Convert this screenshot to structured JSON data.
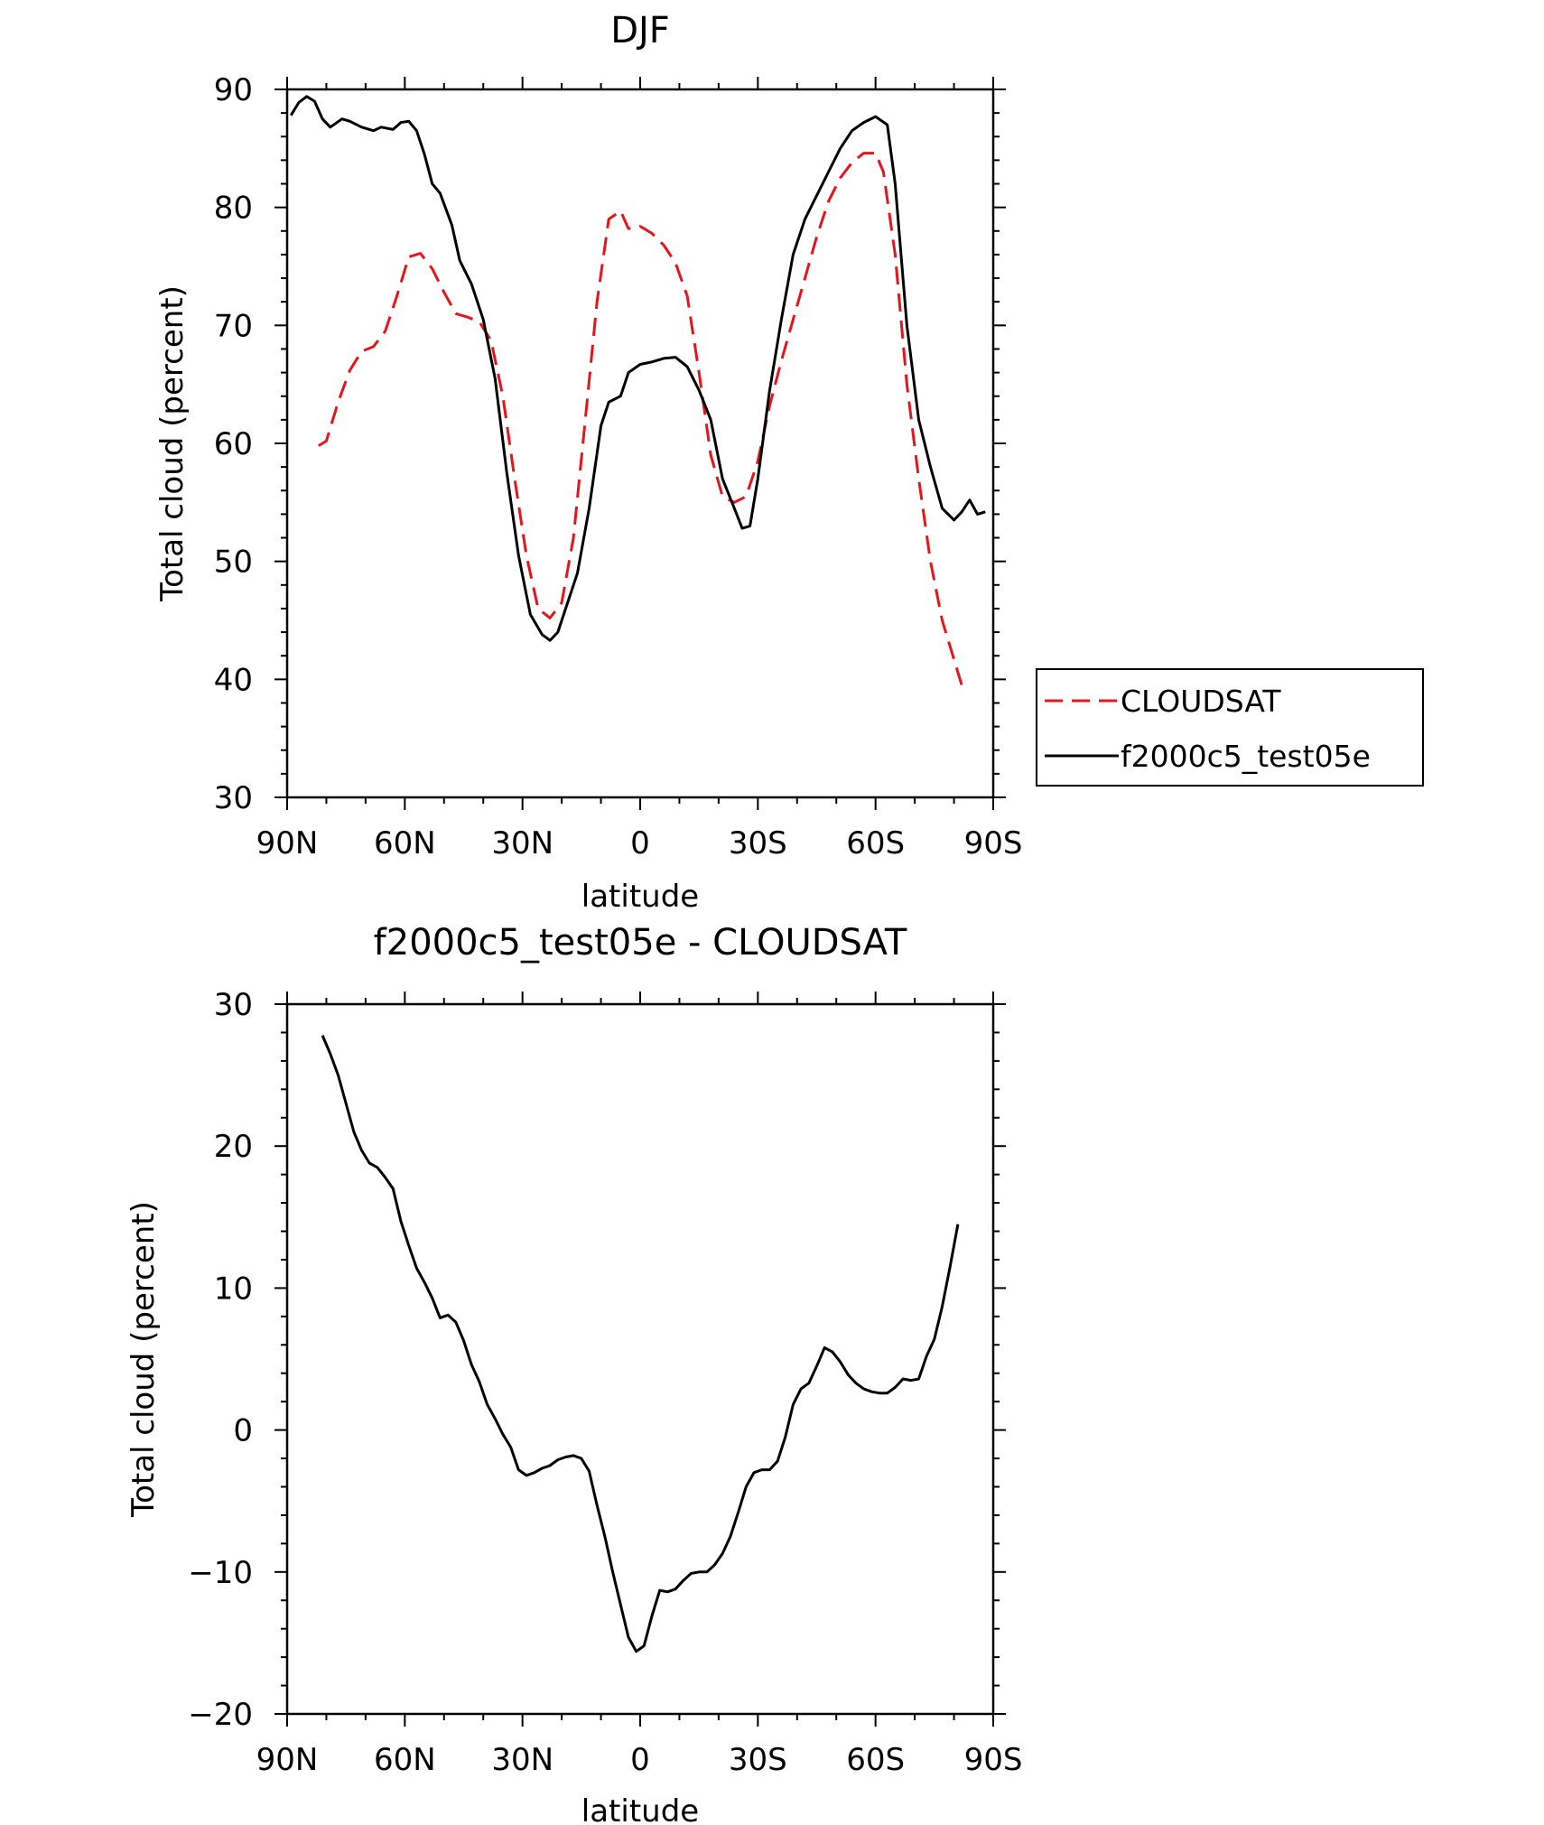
{
  "chart_data": [
    {
      "type": "line",
      "title": "DJF",
      "xlabel": "latitude",
      "ylabel": "Total cloud (percent)",
      "xlim": [
        90,
        -90
      ],
      "ylim": [
        30,
        90
      ],
      "x_ticks": [
        90,
        60,
        30,
        0,
        -30,
        -60,
        -90
      ],
      "x_tick_labels": [
        "90N",
        "60N",
        "30N",
        "0",
        "30S",
        "60S",
        "90S"
      ],
      "y_ticks": [
        30,
        40,
        50,
        60,
        70,
        80,
        90
      ],
      "y_tick_labels": [
        "30",
        "40",
        "50",
        "60",
        "70",
        "80",
        "90"
      ],
      "grid": false,
      "legend": "right",
      "series": [
        {
          "name": "CLOUDSAT",
          "color": "#e8141b",
          "dash": "dashed",
          "x": [
            82,
            80,
            77,
            74,
            71,
            68,
            65,
            62,
            59,
            56,
            53,
            50,
            47,
            44,
            41,
            38,
            35,
            32,
            29,
            26,
            23,
            20,
            17,
            14,
            11,
            8,
            5,
            3,
            0,
            -3,
            -6,
            -9,
            -12,
            -15,
            -18,
            -21,
            -24,
            -27,
            -30,
            -33,
            -36,
            -39,
            -42,
            -45,
            -48,
            -51,
            -54,
            -57,
            -60,
            -62,
            -65,
            -68,
            -71,
            -74,
            -77,
            -82
          ],
          "y": [
            59.8,
            60.2,
            63.5,
            66.2,
            67.8,
            68.2,
            69.5,
            72.5,
            75.8,
            76.1,
            74.8,
            72.8,
            71.0,
            70.7,
            70.3,
            68.7,
            64.0,
            57.0,
            50.5,
            46.0,
            45.2,
            46.5,
            52.0,
            62.0,
            72.0,
            79.0,
            79.7,
            78.2,
            78.4,
            77.8,
            76.8,
            75.3,
            72.5,
            66.0,
            59.0,
            55.5,
            55.0,
            55.5,
            58.5,
            63.2,
            67.0,
            70.5,
            74.0,
            77.5,
            80.5,
            82.5,
            83.8,
            84.6,
            84.6,
            83.0,
            76.0,
            65.0,
            57.0,
            50.0,
            45.0,
            39.5
          ]
        },
        {
          "name": "f2000c5_test05e",
          "color": "#000000",
          "dash": "solid",
          "x": [
            89,
            87,
            85,
            83,
            81,
            79,
            76,
            74,
            71,
            68,
            66,
            63,
            61,
            59,
            57,
            55,
            53,
            51,
            48,
            46,
            43,
            40,
            37,
            34,
            31,
            28,
            25,
            23,
            21,
            19,
            16,
            13,
            10,
            8,
            5,
            3,
            0,
            -3,
            -6,
            -9,
            -12,
            -15,
            -18,
            -21,
            -24,
            -26,
            -28,
            -30,
            -33,
            -36,
            -39,
            -42,
            -45,
            -48,
            -51,
            -54,
            -57,
            -60,
            -63,
            -65,
            -68,
            -71,
            -74,
            -77,
            -80,
            -82,
            -84,
            -86,
            -88
          ],
          "y": [
            87.8,
            88.9,
            89.4,
            89.0,
            87.5,
            86.8,
            87.5,
            87.3,
            86.8,
            86.5,
            86.8,
            86.6,
            87.2,
            87.3,
            86.5,
            84.5,
            82.0,
            81.2,
            78.5,
            75.5,
            73.5,
            70.5,
            65.5,
            57.5,
            50.5,
            45.5,
            43.8,
            43.3,
            44.0,
            46.0,
            49.0,
            54.5,
            61.5,
            63.5,
            64.0,
            66.0,
            66.7,
            66.9,
            67.2,
            67.3,
            66.5,
            64.5,
            62.0,
            57.0,
            54.5,
            52.8,
            53.0,
            57.0,
            64.5,
            70.5,
            76.0,
            79.0,
            81.0,
            83.0,
            85.0,
            86.5,
            87.2,
            87.7,
            87.0,
            82.0,
            70.0,
            62.0,
            58.0,
            54.5,
            53.5,
            54.2,
            55.2,
            54.0,
            54.2
          ]
        }
      ]
    },
    {
      "type": "line",
      "title": "f2000c5_test05e - CLOUDSAT",
      "xlabel": "latitude",
      "ylabel": "Total cloud (percent)",
      "xlim": [
        90,
        -90
      ],
      "ylim": [
        -20,
        30
      ],
      "x_ticks": [
        90,
        60,
        30,
        0,
        -30,
        -60,
        -90
      ],
      "x_tick_labels": [
        "90N",
        "60N",
        "30N",
        "0",
        "30S",
        "60S",
        "90S"
      ],
      "y_ticks": [
        -20,
        -10,
        0,
        10,
        20,
        30
      ],
      "y_tick_labels": [
        "−20",
        "−10",
        "0",
        "10",
        "20",
        "30"
      ],
      "grid": false,
      "series": [
        {
          "color": "#000000",
          "dash": "solid",
          "x": [
            81,
            79,
            77,
            75,
            73,
            71,
            69,
            67,
            65,
            63,
            61,
            59,
            57,
            55,
            53,
            51,
            49,
            47,
            45,
            43,
            41,
            39,
            37,
            35,
            33,
            31,
            29,
            27,
            25,
            23,
            21,
            19,
            17,
            15,
            13,
            11,
            9,
            7,
            5,
            3,
            1,
            -1,
            -3,
            -5,
            -7,
            -9,
            -11,
            -13,
            -15,
            -17,
            -19,
            -21,
            -23,
            -25,
            -27,
            -29,
            -31,
            -33,
            -35,
            -37,
            -39,
            -41,
            -43,
            -45,
            -47,
            -49,
            -51,
            -53,
            -55,
            -57,
            -59,
            -61,
            -63,
            -65,
            -67,
            -69,
            -71,
            -73,
            -75,
            -77,
            -79,
            -81
          ],
          "y": [
            27.8,
            26.5,
            25.0,
            23.0,
            21.0,
            19.7,
            18.8,
            18.5,
            17.8,
            17.0,
            14.7,
            13.0,
            11.4,
            10.4,
            9.3,
            7.9,
            8.1,
            7.6,
            6.3,
            4.6,
            3.4,
            1.8,
            0.8,
            -0.3,
            -1.2,
            -2.8,
            -3.2,
            -3.0,
            -2.7,
            -2.5,
            -2.1,
            -1.9,
            -1.8,
            -2.0,
            -2.9,
            -5.3,
            -7.5,
            -10.0,
            -12.3,
            -14.6,
            -15.6,
            -15.2,
            -13.1,
            -11.3,
            -11.4,
            -11.2,
            -10.6,
            -10.1,
            -10.0,
            -10.0,
            -9.5,
            -8.7,
            -7.5,
            -5.8,
            -4.0,
            -3.0,
            -2.8,
            -2.8,
            -2.2,
            -0.5,
            1.8,
            2.9,
            3.3,
            4.5,
            5.8,
            5.5,
            4.8,
            3.9,
            3.3,
            2.9,
            2.7,
            2.6,
            2.6,
            3.0,
            3.6,
            3.5,
            3.6,
            5.2,
            6.4,
            8.7,
            11.5,
            14.5
          ]
        }
      ]
    }
  ]
}
